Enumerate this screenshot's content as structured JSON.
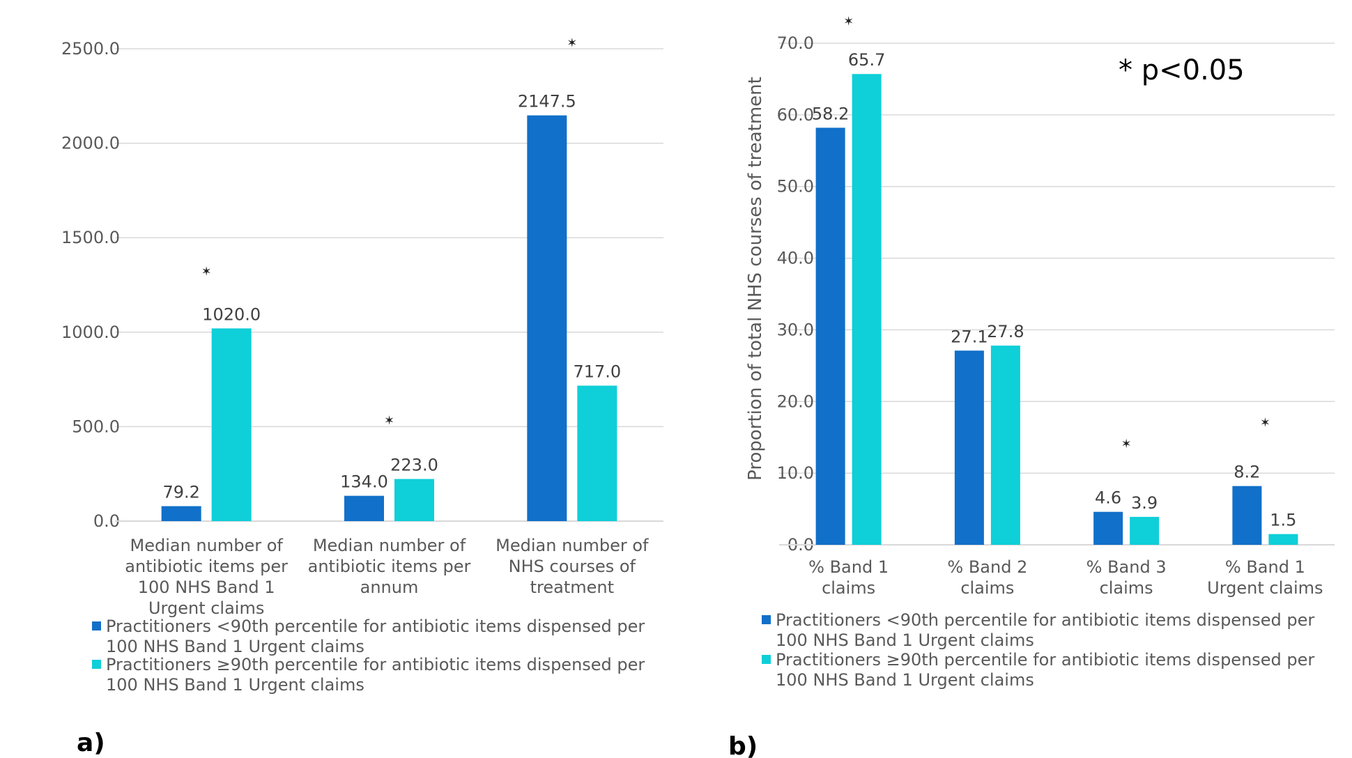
{
  "colors": {
    "below": "#1170c9",
    "above": "#0fcfd8",
    "grid": "#d9d9d9",
    "text": "#595959"
  },
  "legend": [
    {
      "series": "below",
      "line1": "Practitioners <90th percentile for antibiotic items dispensed per",
      "line2": "100 NHS Band 1 Urgent claims"
    },
    {
      "series": "above",
      "line1": "Practitioners ≥90th percentile for antibiotic items dispensed per",
      "line2": "100 NHS Band 1 Urgent claims"
    }
  ],
  "chart_data": [
    {
      "type": "bar",
      "panel_label": "a)",
      "ylim": [
        0,
        2500
      ],
      "yticks": [
        "0.0",
        "500.0",
        "1000.0",
        "1500.0",
        "2000.0",
        "2500.0"
      ],
      "grid": true,
      "legend_position": "bottom",
      "categories": [
        [
          "Median number of",
          "antibiotic items per",
          "100 NHS Band 1",
          "Urgent claims"
        ],
        [
          "Median number of",
          "antibiotic items per",
          "annum"
        ],
        [
          "Median number of",
          "NHS courses of",
          "treatment"
        ]
      ],
      "series": [
        {
          "name": "Practitioners <90th percentile for antibiotic items dispensed per 100 NHS Band 1 Urgent claims",
          "values": [
            79.2,
            134.0,
            2147.5
          ],
          "labels": [
            "79.2",
            "134.0",
            "2147.5"
          ]
        },
        {
          "name": "Practitioners ≥90th percentile for antibiotic items dispensed per 100 NHS Band 1 Urgent claims",
          "values": [
            1020.0,
            223.0,
            717.0
          ],
          "labels": [
            "1020.0",
            "223.0",
            "717.0"
          ]
        }
      ],
      "significance_markers": [
        "✶",
        "✶",
        "✶"
      ],
      "significance_values": [
        1300,
        510,
        2510
      ]
    },
    {
      "type": "bar",
      "panel_label": "b)",
      "ylabel": "Proportion of total NHS courses of treatment",
      "ylim": [
        0,
        70
      ],
      "yticks": [
        "0.0",
        "10.0",
        "20.0",
        "30.0",
        "40.0",
        "50.0",
        "60.0",
        "70.0"
      ],
      "grid": true,
      "legend_position": "bottom",
      "annotation": "* p<0.05",
      "categories": [
        [
          "% Band 1",
          "claims"
        ],
        [
          "% Band 2",
          "claims"
        ],
        [
          "% Band 3",
          "claims"
        ],
        [
          "% Band 1",
          "Urgent claims"
        ]
      ],
      "series": [
        {
          "name": "Practitioners <90th percentile for antibiotic items dispensed per 100 NHS Band 1 Urgent claims",
          "values": [
            58.2,
            27.1,
            4.6,
            8.2
          ],
          "labels": [
            "58.2",
            "27.1",
            "4.6",
            "8.2"
          ]
        },
        {
          "name": "Practitioners ≥90th percentile for antibiotic items dispensed per 100 NHS Band 1 Urgent claims",
          "values": [
            65.7,
            27.8,
            3.9,
            1.5
          ],
          "labels": [
            "65.7",
            "27.8",
            "3.9",
            "1.5"
          ]
        }
      ],
      "significance_markers": [
        "✶",
        "",
        "✶",
        "✶"
      ],
      "significance_values": [
        72.5,
        null,
        13.5,
        16.5
      ]
    }
  ]
}
